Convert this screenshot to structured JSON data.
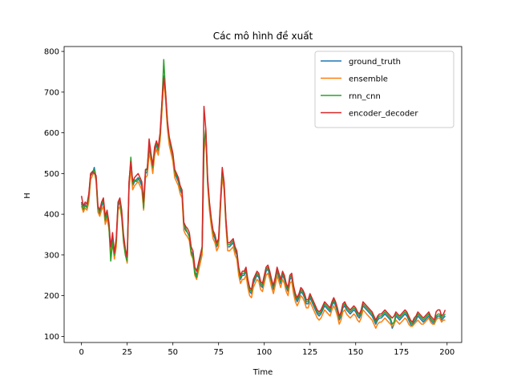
{
  "chart_data": {
    "type": "line",
    "title": "Các mô hình đề xuất",
    "xlabel": "Time",
    "ylabel": "H",
    "xlim": [
      -9.5,
      208
    ],
    "ylim": [
      85,
      812
    ],
    "xticks": [
      0,
      25,
      50,
      75,
      100,
      125,
      150,
      175,
      200
    ],
    "yticks": [
      100,
      200,
      300,
      400,
      500,
      600,
      700,
      800
    ],
    "grid": false,
    "legend_position": "upper-right",
    "x_start": 0,
    "x_step": 1,
    "series": [
      {
        "name": "ground_truth",
        "color": "#1f77b4",
        "values": [
          430,
          410,
          425,
          415,
          440,
          495,
          500,
          515,
          490,
          410,
          400,
          420,
          430,
          380,
          400,
          375,
          310,
          340,
          295,
          330,
          420,
          430,
          400,
          340,
          305,
          290,
          470,
          525,
          470,
          480,
          485,
          490,
          480,
          470,
          420,
          500,
          505,
          560,
          540,
          510,
          555,
          570,
          555,
          590,
          660,
          740,
          690,
          620,
          580,
          560,
          540,
          500,
          490,
          480,
          460,
          450,
          370,
          360,
          355,
          345,
          310,
          300,
          260,
          250,
          270,
          290,
          310,
          560,
          600,
          480,
          420,
          380,
          350,
          340,
          320,
          330,
          420,
          500,
          470,
          380,
          320,
          320,
          325,
          330,
          310,
          300,
          260,
          240,
          250,
          250,
          260,
          230,
          210,
          205,
          230,
          240,
          250,
          245,
          225,
          220,
          240,
          260,
          265,
          250,
          230,
          215,
          235,
          260,
          245,
          230,
          250,
          240,
          220,
          210,
          240,
          245,
          215,
          195,
          185,
          195,
          210,
          205,
          195,
          180,
          180,
          195,
          185,
          175,
          165,
          155,
          150,
          155,
          165,
          175,
          170,
          165,
          160,
          175,
          185,
          175,
          160,
          140,
          150,
          170,
          175,
          165,
          160,
          155,
          160,
          165,
          160,
          150,
          145,
          155,
          175,
          170,
          165,
          160,
          155,
          150,
          140,
          130,
          140,
          145,
          145,
          150,
          155,
          150,
          145,
          140,
          120,
          130,
          150,
          145,
          140,
          145,
          150,
          155,
          150,
          140,
          130,
          125,
          135,
          140,
          150,
          145,
          140,
          135,
          140,
          145,
          150,
          140,
          135,
          130,
          145,
          150,
          150,
          140,
          145,
          150
        ]
      },
      {
        "name": "ensemble",
        "color": "#ff7f0e",
        "values": [
          420,
          405,
          415,
          410,
          430,
          485,
          495,
          505,
          480,
          405,
          395,
          410,
          420,
          375,
          390,
          365,
          305,
          330,
          290,
          320,
          410,
          420,
          390,
          330,
          300,
          280,
          460,
          515,
          460,
          470,
          475,
          480,
          470,
          460,
          410,
          490,
          495,
          550,
          530,
          500,
          545,
          560,
          545,
          580,
          650,
          730,
          680,
          610,
          570,
          550,
          530,
          490,
          480,
          470,
          450,
          440,
          360,
          350,
          345,
          335,
          300,
          290,
          250,
          240,
          260,
          280,
          300,
          550,
          590,
          470,
          410,
          370,
          340,
          330,
          310,
          320,
          410,
          490,
          460,
          370,
          310,
          310,
          315,
          320,
          300,
          290,
          250,
          230,
          240,
          240,
          250,
          220,
          200,
          195,
          220,
          230,
          240,
          235,
          215,
          210,
          230,
          250,
          255,
          240,
          220,
          205,
          225,
          250,
          235,
          220,
          240,
          230,
          210,
          200,
          230,
          235,
          205,
          185,
          175,
          185,
          200,
          195,
          185,
          170,
          170,
          185,
          175,
          165,
          155,
          145,
          140,
          145,
          155,
          165,
          160,
          155,
          150,
          165,
          175,
          165,
          150,
          130,
          140,
          160,
          165,
          155,
          150,
          145,
          150,
          155,
          150,
          140,
          135,
          145,
          165,
          160,
          155,
          150,
          145,
          140,
          130,
          120,
          130,
          135,
          135,
          140,
          145,
          140,
          135,
          130,
          125,
          130,
          140,
          135,
          130,
          135,
          140,
          145,
          140,
          130,
          125,
          125,
          130,
          135,
          140,
          135,
          130,
          130,
          135,
          140,
          145,
          135,
          130,
          130,
          140,
          145,
          145,
          135,
          140,
          140
        ]
      },
      {
        "name": "rnn_cnn",
        "color": "#2ca02c",
        "values": [
          425,
          412,
          420,
          418,
          445,
          500,
          505,
          510,
          485,
          415,
          405,
          425,
          435,
          385,
          405,
          370,
          285,
          330,
          300,
          335,
          425,
          435,
          395,
          335,
          300,
          285,
          475,
          540,
          475,
          485,
          480,
          485,
          490,
          475,
          415,
          505,
          515,
          570,
          545,
          515,
          560,
          575,
          560,
          595,
          670,
          780,
          700,
          625,
          585,
          565,
          545,
          505,
          495,
          485,
          465,
          455,
          375,
          365,
          355,
          345,
          305,
          295,
          255,
          245,
          275,
          295,
          315,
          570,
          610,
          485,
          425,
          385,
          355,
          345,
          325,
          335,
          425,
          505,
          475,
          385,
          325,
          325,
          330,
          335,
          315,
          305,
          265,
          245,
          255,
          255,
          265,
          235,
          215,
          210,
          235,
          245,
          255,
          250,
          230,
          225,
          245,
          265,
          270,
          255,
          235,
          220,
          240,
          265,
          250,
          235,
          255,
          245,
          225,
          215,
          245,
          250,
          220,
          200,
          190,
          200,
          215,
          210,
          200,
          185,
          185,
          200,
          190,
          180,
          170,
          160,
          155,
          160,
          170,
          180,
          175,
          170,
          165,
          180,
          190,
          180,
          165,
          145,
          155,
          175,
          180,
          170,
          165,
          160,
          165,
          170,
          165,
          155,
          150,
          160,
          180,
          175,
          170,
          165,
          160,
          155,
          145,
          135,
          145,
          150,
          150,
          155,
          160,
          155,
          150,
          145,
          130,
          135,
          155,
          150,
          145,
          150,
          155,
          160,
          155,
          145,
          135,
          130,
          140,
          145,
          155,
          150,
          145,
          140,
          145,
          150,
          155,
          145,
          140,
          135,
          150,
          155,
          155,
          145,
          150,
          155
        ]
      },
      {
        "name": "encoder_decoder",
        "color": "#d62728",
        "values": [
          445,
          420,
          430,
          425,
          450,
          500,
          505,
          500,
          495,
          420,
          410,
          430,
          440,
          395,
          410,
          380,
          320,
          355,
          305,
          340,
          430,
          440,
          410,
          350,
          315,
          295,
          480,
          530,
          480,
          490,
          495,
          500,
          490,
          480,
          430,
          510,
          510,
          585,
          550,
          520,
          565,
          580,
          565,
          600,
          675,
          735,
          700,
          630,
          590,
          570,
          550,
          510,
          500,
          490,
          470,
          460,
          380,
          370,
          365,
          355,
          320,
          310,
          270,
          260,
          280,
          300,
          320,
          665,
          610,
          490,
          430,
          390,
          360,
          350,
          330,
          340,
          430,
          515,
          480,
          390,
          330,
          330,
          335,
          340,
          320,
          310,
          270,
          250,
          260,
          260,
          270,
          240,
          220,
          215,
          240,
          250,
          260,
          255,
          235,
          230,
          250,
          270,
          275,
          260,
          240,
          225,
          245,
          270,
          255,
          240,
          260,
          250,
          230,
          220,
          250,
          255,
          225,
          205,
          195,
          205,
          220,
          215,
          205,
          190,
          190,
          205,
          195,
          185,
          175,
          165,
          160,
          165,
          175,
          185,
          180,
          175,
          170,
          185,
          195,
          185,
          170,
          150,
          160,
          180,
          185,
          175,
          170,
          165,
          170,
          175,
          170,
          160,
          155,
          165,
          185,
          180,
          175,
          170,
          165,
          160,
          150,
          140,
          150,
          155,
          155,
          160,
          165,
          160,
          155,
          150,
          145,
          150,
          160,
          155,
          150,
          155,
          160,
          165,
          160,
          150,
          140,
          135,
          145,
          150,
          160,
          155,
          150,
          145,
          150,
          155,
          160,
          150,
          145,
          140,
          160,
          165,
          165,
          150,
          155,
          165
        ]
      }
    ]
  }
}
